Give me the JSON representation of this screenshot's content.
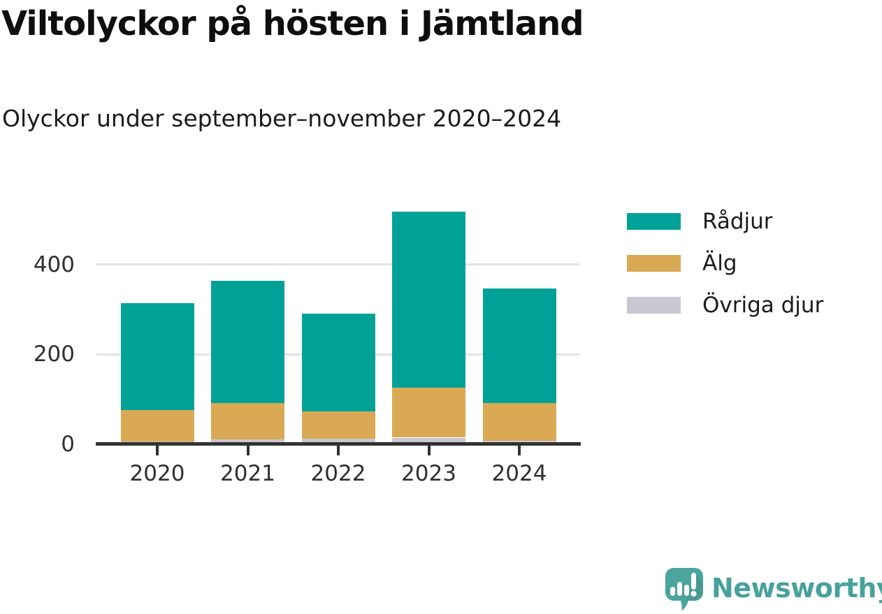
{
  "chart_data": {
    "type": "bar",
    "stacked": true,
    "title": "Viltolyckor på hösten i Jämtland",
    "subtitle": "Olyckor under september–november 2020–2024",
    "categories": [
      "2020",
      "2021",
      "2022",
      "2023",
      "2024"
    ],
    "series": [
      {
        "name": "Rådjur",
        "key": "radjur",
        "color": "#00a298",
        "values": [
          237,
          272,
          218,
          393,
          255
        ]
      },
      {
        "name": "Älg",
        "key": "alg",
        "color": "#d9a953",
        "values": [
          70,
          81,
          61,
          111,
          84
        ]
      },
      {
        "name": "Övriga djur",
        "key": "ovriga-djur",
        "color": "#c9c7d3",
        "values": [
          6,
          10,
          11,
          14,
          7
        ]
      }
    ],
    "y_axis": {
      "ticks": [
        0,
        200,
        400
      ],
      "gridlines": [
        200,
        400
      ],
      "range": [
        0,
        520
      ]
    },
    "x_axis": {
      "label": ""
    },
    "legend_position": "right",
    "grid": true
  },
  "footer": {
    "brand": "Newsworthy"
  },
  "colors": {
    "teal": "#00a298",
    "gold": "#d9a953",
    "gray": "#c9c7d3",
    "axis": "#323232",
    "gridline": "#e3e3e3",
    "text": "#1b1b1b",
    "logo_teal": "#47a19c"
  }
}
